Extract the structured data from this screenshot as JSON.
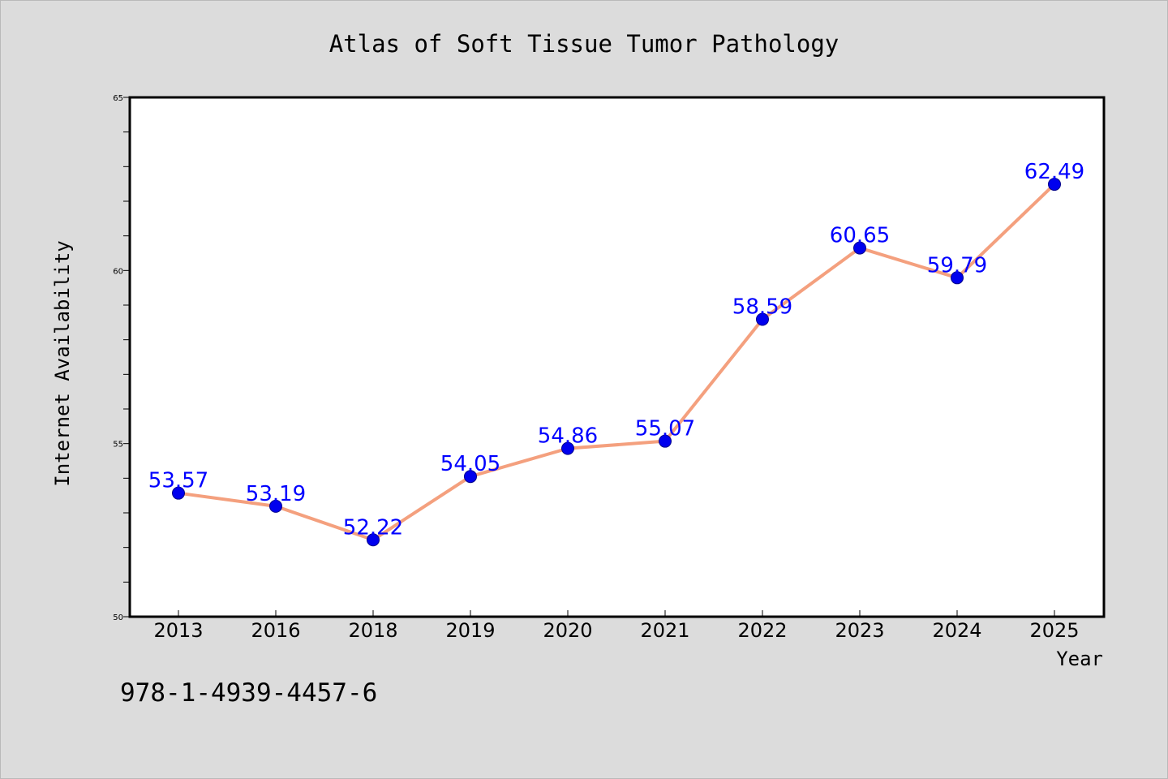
{
  "chart_data": {
    "type": "line",
    "title": "Atlas of Soft Tissue Tumor Pathology",
    "xlabel": "Year",
    "ylabel": "Internet Availability",
    "categories": [
      "2013",
      "2016",
      "2018",
      "2019",
      "2020",
      "2021",
      "2022",
      "2023",
      "2024",
      "2025"
    ],
    "values": [
      53.57,
      53.19,
      52.22,
      54.05,
      54.86,
      55.07,
      58.59,
      60.65,
      59.79,
      62.49
    ],
    "data_labels": [
      "53.57",
      "53.19",
      "52.22",
      "54.05",
      "54.86",
      "55.07",
      "58.59",
      "60.65",
      "59.79",
      "62.49"
    ],
    "ylim": [
      50,
      65
    ],
    "yticks": [
      "50",
      "55",
      "60",
      "65"
    ],
    "grid": false,
    "colors": {
      "line": "#f4a07e",
      "marker": "#0000ee",
      "label": "#0000ff",
      "background": "#dcdcdc",
      "plot_bg": "#ffffff"
    }
  },
  "footer_text": "978-1-4939-4457-6"
}
